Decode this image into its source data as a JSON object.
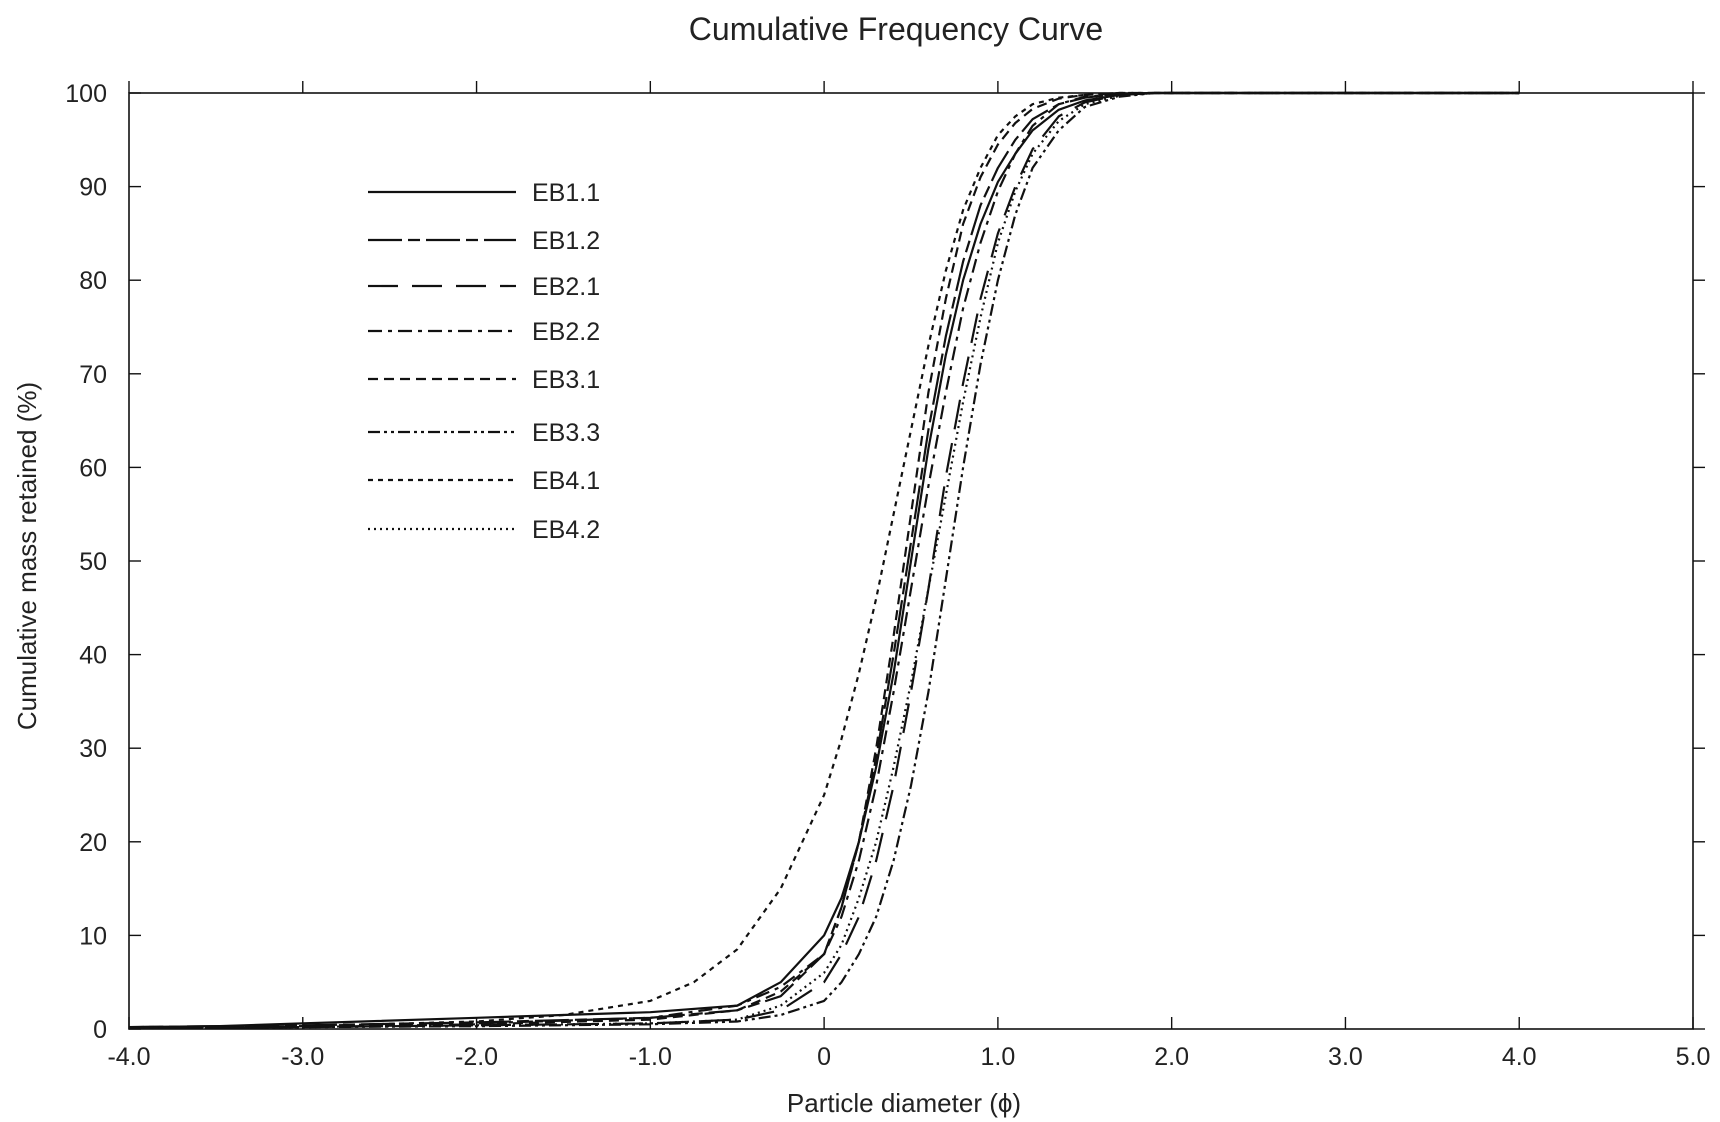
{
  "chart_data": {
    "type": "line",
    "title": "Cumulative Frequency Curve",
    "xlabel": "Particle diameter (ϕ)",
    "ylabel": "Cumulative mass retained (%)",
    "xlim": [
      -4.0,
      5.0
    ],
    "ylim": [
      0,
      100
    ],
    "xticks": [
      -4.0,
      -3.0,
      -2.0,
      -1.0,
      0,
      1.0,
      2.0,
      3.0,
      4.0,
      5.0
    ],
    "xtick_labels": [
      "-4.0",
      "-3.0",
      "-2.0",
      "-1.0",
      "0",
      "1.0",
      "2.0",
      "3.0",
      "4.0",
      "5.0"
    ],
    "yticks": [
      0,
      10,
      20,
      30,
      40,
      50,
      60,
      70,
      80,
      90,
      100
    ],
    "ytick_labels": [
      "0",
      "10",
      "20",
      "30",
      "40",
      "50",
      "60",
      "70",
      "80",
      "90",
      "100"
    ],
    "grid": false,
    "legend_position": "top-left",
    "series": [
      {
        "name": "EB1.1",
        "dash": "solid",
        "x": [
          -4,
          -3.5,
          -3,
          -2,
          -1,
          -0.5,
          -0.25,
          0,
          0.1,
          0.2,
          0.3,
          0.4,
          0.5,
          0.6,
          0.7,
          0.8,
          0.9,
          1.0,
          1.1,
          1.2,
          1.35,
          1.5,
          1.7,
          1.9,
          2.0,
          3.0,
          4.0
        ],
        "y": [
          0.2,
          0.3,
          0.6,
          1.2,
          1.8,
          2.5,
          5,
          10,
          14,
          20,
          28,
          38,
          50,
          62,
          72,
          80,
          86,
          90.5,
          93.5,
          96,
          98.2,
          99.2,
          99.8,
          100,
          100,
          100,
          100
        ]
      },
      {
        "name": "EB1.2",
        "dash": "long-short",
        "x": [
          -4,
          -3,
          -2,
          -1,
          -0.5,
          -0.25,
          0,
          0.1,
          0.2,
          0.3,
          0.4,
          0.5,
          0.6,
          0.7,
          0.8,
          0.9,
          1.0,
          1.1,
          1.2,
          1.35,
          1.5,
          1.7,
          1.9,
          2.0,
          3.0,
          4.0
        ],
        "y": [
          0.2,
          0.4,
          0.7,
          1.2,
          2,
          3.5,
          8,
          13,
          20,
          29,
          40,
          52,
          64,
          74,
          82,
          88,
          92,
          95,
          97.2,
          98.8,
          99.5,
          99.9,
          100,
          100,
          100,
          100
        ]
      },
      {
        "name": "EB2.1",
        "dash": "long",
        "x": [
          -4,
          -3,
          -2,
          -1,
          -0.5,
          -0.25,
          0,
          0.1,
          0.2,
          0.3,
          0.4,
          0.5,
          0.6,
          0.7,
          0.8,
          0.9,
          1.0,
          1.1,
          1.2,
          1.35,
          1.5,
          1.7,
          1.9,
          2.0,
          3.0,
          4.0
        ],
        "y": [
          0.1,
          0.2,
          0.4,
          0.6,
          1,
          2,
          5,
          8,
          12,
          18,
          26,
          36,
          47,
          59,
          69,
          78,
          85,
          90,
          94,
          97.5,
          99,
          99.8,
          100,
          100,
          100,
          100
        ]
      },
      {
        "name": "EB2.2",
        "dash": "dash-dot",
        "x": [
          -4,
          -3,
          -2,
          -1,
          -0.5,
          -0.25,
          0,
          0.1,
          0.2,
          0.3,
          0.4,
          0.5,
          0.6,
          0.7,
          0.8,
          0.9,
          1.0,
          1.1,
          1.2,
          1.35,
          1.5,
          1.7,
          1.9,
          2.0,
          3.0,
          4.0
        ],
        "y": [
          0.1,
          0.3,
          0.6,
          1.2,
          2.5,
          4.5,
          8,
          12,
          18,
          26,
          36,
          47,
          58,
          68,
          77,
          84,
          89.5,
          93.5,
          96.5,
          98.8,
          99.6,
          99.9,
          100,
          100,
          100,
          100
        ]
      },
      {
        "name": "EB3.1",
        "dash": "dashed",
        "x": [
          -4,
          -3,
          -2,
          -1,
          -0.5,
          -0.25,
          0,
          0.1,
          0.2,
          0.3,
          0.4,
          0.5,
          0.6,
          0.7,
          0.8,
          0.9,
          1.0,
          1.1,
          1.2,
          1.35,
          1.5,
          1.7,
          1.9,
          2.0,
          3.0,
          4.0
        ],
        "y": [
          0.1,
          0.2,
          0.5,
          1,
          2,
          4,
          8,
          13,
          20,
          30,
          42,
          55,
          68,
          78,
          86,
          91,
          94.5,
          96.8,
          98.3,
          99.4,
          99.8,
          100,
          100,
          100,
          100,
          100
        ]
      },
      {
        "name": "EB3.3",
        "dash": "dash-dot-dot",
        "x": [
          -4,
          -3,
          -2,
          -1,
          -0.5,
          -0.25,
          0,
          0.1,
          0.2,
          0.3,
          0.4,
          0.5,
          0.6,
          0.7,
          0.8,
          0.9,
          1.0,
          1.1,
          1.2,
          1.35,
          1.5,
          1.7,
          1.9,
          2.0,
          3.0,
          4.0
        ],
        "y": [
          0.1,
          0.2,
          0.3,
          0.5,
          0.8,
          1.5,
          3,
          5,
          8,
          12,
          18,
          26,
          36,
          48,
          60,
          71,
          80,
          87,
          92,
          96,
          98.5,
          99.6,
          100,
          100,
          100,
          100
        ]
      },
      {
        "name": "EB4.1",
        "dash": "fine-dashed",
        "x": [
          -4,
          -3,
          -2,
          -1.5,
          -1,
          -0.75,
          -0.5,
          -0.25,
          0,
          0.1,
          0.2,
          0.3,
          0.4,
          0.5,
          0.6,
          0.7,
          0.8,
          0.9,
          1.0,
          1.1,
          1.2,
          1.35,
          1.5,
          1.7,
          1.9,
          2.0,
          3.0,
          4.0
        ],
        "y": [
          0.2,
          0.3,
          0.8,
          1.5,
          3,
          5,
          8.5,
          15,
          25,
          31,
          38,
          46,
          55,
          64,
          73,
          81,
          87.5,
          92,
          95.5,
          97.5,
          98.8,
          99.5,
          99.8,
          100,
          100,
          100,
          100,
          100
        ]
      },
      {
        "name": "EB4.2",
        "dash": "dotted",
        "x": [
          -4,
          -3,
          -2,
          -1,
          -0.5,
          -0.25,
          0,
          0.1,
          0.2,
          0.3,
          0.4,
          0.5,
          0.6,
          0.7,
          0.8,
          0.9,
          1.0,
          1.1,
          1.2,
          1.35,
          1.5,
          1.7,
          1.9,
          2.0,
          3.0,
          4.0
        ],
        "y": [
          0.1,
          0.2,
          0.4,
          0.6,
          1,
          2.5,
          6,
          9,
          14,
          20,
          28,
          37,
          47,
          57,
          67,
          76,
          84,
          89.5,
          93.5,
          97,
          98.8,
          99.7,
          100,
          100,
          100,
          100
        ]
      }
    ]
  }
}
